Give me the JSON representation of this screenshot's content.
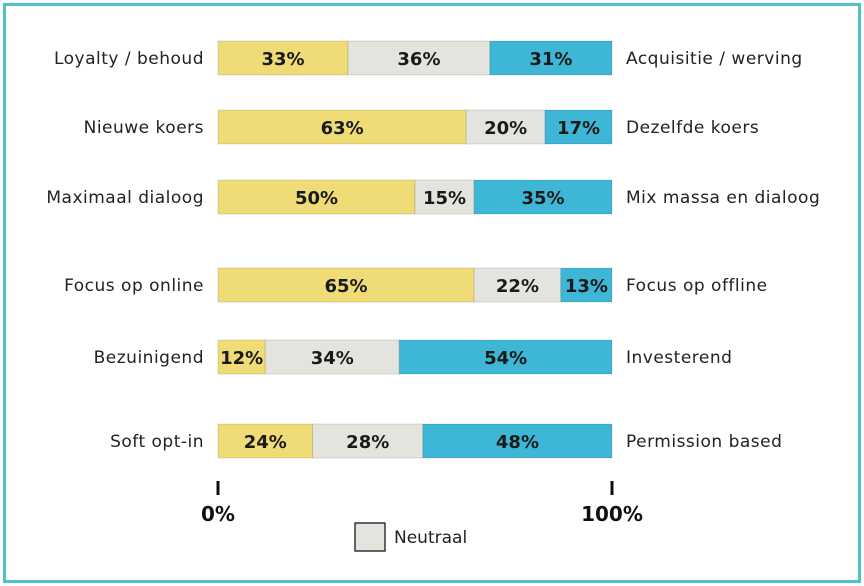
{
  "chart_data": {
    "type": "bar",
    "stacked": true,
    "orientation": "horizontal",
    "rows": [
      {
        "left_label": "Loyalty / behoud",
        "right_label": "Acquisitie / werving",
        "values": [
          33,
          36,
          31
        ]
      },
      {
        "left_label": "Nieuwe koers",
        "right_label": "Dezelfde koers",
        "values": [
          63,
          20,
          17
        ]
      },
      {
        "left_label": "Maximaal dialoog",
        "right_label": "Mix massa en dialoog",
        "values": [
          50,
          15,
          35
        ]
      },
      {
        "left_label": "Focus op online",
        "right_label": "Focus op offline",
        "values": [
          65,
          22,
          13
        ]
      },
      {
        "left_label": "Bezuinigend",
        "right_label": "Investerend",
        "values": [
          12,
          34,
          54
        ]
      },
      {
        "left_label": "Soft opt-in",
        "right_label": "Permission based",
        "values": [
          24,
          28,
          48
        ]
      }
    ],
    "segment_colors": [
      "#f0dc76",
      "#e4e4de",
      "#3eb6d6"
    ],
    "x_ticks": [
      "0%",
      "100%"
    ],
    "xlim": [
      0,
      100
    ],
    "legend": {
      "label": "Neutraal",
      "color": "#e4e4de",
      "placement": "bottom-center"
    },
    "frame_color": "#4fc3c3"
  }
}
